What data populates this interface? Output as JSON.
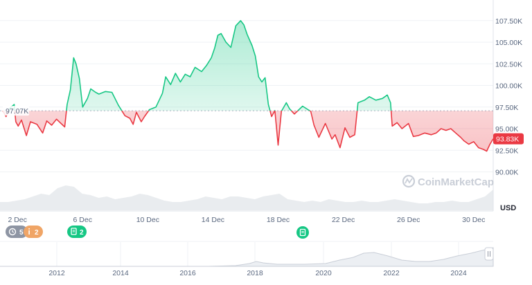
{
  "chart_data": {
    "type": "area",
    "unit_label": "USD",
    "watermark": "CoinMarketCap",
    "ylim": [
      88500,
      109000
    ],
    "y_ticks": [
      {
        "v": 107500,
        "label": "107.50K"
      },
      {
        "v": 105000,
        "label": "105.00K"
      },
      {
        "v": 102500,
        "label": "102.50K"
      },
      {
        "v": 100000,
        "label": "100.00K"
      },
      {
        "v": 97500,
        "label": "97.50K"
      },
      {
        "v": 95000,
        "label": "95.00K"
      },
      {
        "v": 92500,
        "label": "92.50K"
      },
      {
        "v": 90000,
        "label": "90.00K"
      }
    ],
    "x_ticks": [
      {
        "day": 2,
        "label": "2 Dec"
      },
      {
        "day": 6,
        "label": "6 Dec"
      },
      {
        "day": 10,
        "label": "10 Dec"
      },
      {
        "day": 14,
        "label": "14 Dec"
      },
      {
        "day": 18,
        "label": "18 Dec"
      },
      {
        "day": 22,
        "label": "22 Dec"
      },
      {
        "day": 26,
        "label": "26 Dec"
      },
      {
        "day": 30,
        "label": "30 Dec"
      }
    ],
    "x_range_days": [
      1.1,
      31.2
    ],
    "baseline": {
      "value": 97070,
      "label": "97.07K"
    },
    "current": {
      "value": 93830,
      "label": "93.83K"
    },
    "colors": {
      "up": "#16c784",
      "down": "#ea3943",
      "grid": "#eff2f5",
      "volume": "#e2e5ea"
    },
    "x_dates": [
      "Dec 1",
      "Dec 1.5",
      "Dec 2",
      "Dec 2.5",
      "Dec 3",
      "Dec 3.5",
      "Dec 4",
      "Dec 4.5",
      "Dec 5",
      "Dec 5.5",
      "Dec 6",
      "Dec 6.5",
      "Dec 7",
      "Dec 7.5",
      "Dec 8",
      "Dec 8.5",
      "Dec 9",
      "Dec 9.5",
      "Dec 10",
      "Dec 10.5",
      "Dec 11",
      "Dec 11.5",
      "Dec 12",
      "Dec 12.5",
      "Dec 13",
      "Dec 13.5",
      "Dec 14",
      "Dec 14.5",
      "Dec 15",
      "Dec 15.5",
      "Dec 16",
      "Dec 16.5",
      "Dec 17",
      "Dec 17.5",
      "Dec 18",
      "Dec 18.5",
      "Dec 19",
      "Dec 19.5",
      "Dec 20",
      "Dec 20.5",
      "Dec 21",
      "Dec 21.5",
      "Dec 22",
      "Dec 22.5",
      "Dec 23",
      "Dec 23.5",
      "Dec 24",
      "Dec 24.5",
      "Dec 25",
      "Dec 25.5",
      "Dec 26",
      "Dec 26.5",
      "Dec 27",
      "Dec 27.5",
      "Dec 28",
      "Dec 28.5",
      "Dec 29",
      "Dec 29.5",
      "Dec 30",
      "Dec 30.5",
      "Dec 31"
    ],
    "prices": [
      97070,
      96400,
      97800,
      95500,
      94800,
      95300,
      96100,
      95200,
      97800,
      103000,
      100500,
      97000,
      99600,
      99000,
      99200,
      97700,
      96200,
      95400,
      96900,
      96400,
      97500,
      99000,
      101200,
      101000,
      100100,
      101400,
      101200,
      102300,
      104300,
      105000,
      107000,
      107600,
      107300,
      103400,
      100300,
      97000,
      96900,
      97600,
      97100,
      97000,
      95700,
      95200,
      94300,
      93900,
      94500,
      98300,
      98600,
      98700,
      95400,
      95200,
      95500,
      94700,
      93700,
      93700,
      94400,
      94700,
      93500,
      93200,
      92400,
      92000,
      93830
    ],
    "price_line": [
      [
        1.1,
        97070
      ],
      [
        1.3,
        96400
      ],
      [
        1.55,
        97400
      ],
      [
        1.8,
        97800
      ],
      [
        1.9,
        95800
      ],
      [
        2.05,
        95300
      ],
      [
        2.25,
        96000
      ],
      [
        2.55,
        94200
      ],
      [
        2.8,
        95800
      ],
      [
        3.2,
        95500
      ],
      [
        3.55,
        94500
      ],
      [
        3.8,
        95900
      ],
      [
        4.1,
        95400
      ],
      [
        4.4,
        96100
      ],
      [
        4.9,
        95200
      ],
      [
        5.05,
        97800
      ],
      [
        5.25,
        99500
      ],
      [
        5.45,
        103200
      ],
      [
        5.6,
        102500
      ],
      [
        5.8,
        100800
      ],
      [
        6.0,
        97500
      ],
      [
        6.3,
        98500
      ],
      [
        6.5,
        99600
      ],
      [
        6.8,
        99200
      ],
      [
        7.0,
        99000
      ],
      [
        7.4,
        99300
      ],
      [
        7.8,
        99200
      ],
      [
        8.2,
        97700
      ],
      [
        8.6,
        96500
      ],
      [
        8.9,
        96200
      ],
      [
        9.1,
        95500
      ],
      [
        9.3,
        96900
      ],
      [
        9.6,
        95800
      ],
      [
        9.8,
        96400
      ],
      [
        10.1,
        97200
      ],
      [
        10.5,
        97500
      ],
      [
        10.9,
        99100
      ],
      [
        11.1,
        101000
      ],
      [
        11.4,
        100100
      ],
      [
        11.7,
        101400
      ],
      [
        12.0,
        100400
      ],
      [
        12.3,
        101300
      ],
      [
        12.6,
        101000
      ],
      [
        12.9,
        102100
      ],
      [
        13.3,
        101600
      ],
      [
        13.6,
        102300
      ],
      [
        13.9,
        103200
      ],
      [
        14.1,
        104300
      ],
      [
        14.3,
        105800
      ],
      [
        14.5,
        106000
      ],
      [
        14.8,
        105000
      ],
      [
        15.1,
        104400
      ],
      [
        15.4,
        106900
      ],
      [
        15.7,
        107500
      ],
      [
        15.9,
        107000
      ],
      [
        16.1,
        105900
      ],
      [
        16.4,
        104600
      ],
      [
        16.6,
        103400
      ],
      [
        16.8,
        101000
      ],
      [
        17.0,
        100400
      ],
      [
        17.2,
        100900
      ],
      [
        17.4,
        97800
      ],
      [
        17.6,
        96400
      ],
      [
        17.8,
        97100
      ],
      [
        18.0,
        93100
      ],
      [
        18.2,
        97000
      ],
      [
        18.5,
        98000
      ],
      [
        18.7,
        97300
      ],
      [
        19.0,
        96700
      ],
      [
        19.5,
        97600
      ],
      [
        20.0,
        97000
      ],
      [
        20.2,
        95400
      ],
      [
        20.5,
        94000
      ],
      [
        20.9,
        95600
      ],
      [
        21.3,
        93800
      ],
      [
        21.5,
        94300
      ],
      [
        21.8,
        92800
      ],
      [
        22.1,
        95100
      ],
      [
        22.4,
        94000
      ],
      [
        22.7,
        94300
      ],
      [
        22.9,
        98000
      ],
      [
        23.3,
        98300
      ],
      [
        23.6,
        98700
      ],
      [
        24.0,
        98300
      ],
      [
        24.4,
        98500
      ],
      [
        24.7,
        98900
      ],
      [
        24.9,
        98000
      ],
      [
        25.0,
        95300
      ],
      [
        25.3,
        95700
      ],
      [
        25.6,
        95000
      ],
      [
        26.0,
        95600
      ],
      [
        26.3,
        94100
      ],
      [
        26.6,
        94200
      ],
      [
        27.0,
        94500
      ],
      [
        27.4,
        94300
      ],
      [
        27.7,
        94500
      ],
      [
        28.0,
        95000
      ],
      [
        28.3,
        94800
      ],
      [
        28.6,
        95000
      ],
      [
        28.9,
        94500
      ],
      [
        29.2,
        94000
      ],
      [
        29.4,
        93600
      ],
      [
        29.7,
        93200
      ],
      [
        30.0,
        93500
      ],
      [
        30.3,
        92800
      ],
      [
        30.6,
        92600
      ],
      [
        30.8,
        92400
      ],
      [
        31.0,
        93200
      ],
      [
        31.2,
        93830
      ]
    ],
    "volume_profile": [
      0.3,
      0.3,
      0.35,
      0.4,
      0.5,
      0.6,
      0.55,
      0.8,
      0.9,
      0.85,
      0.6,
      0.55,
      0.45,
      0.5,
      0.4,
      0.45,
      0.5,
      0.6,
      0.55,
      0.45,
      0.35,
      0.3,
      0.3,
      0.35,
      0.4,
      0.5,
      0.45,
      0.4,
      0.5,
      0.5,
      0.45,
      0.4,
      0.5,
      0.55,
      0.6,
      0.4,
      0.35,
      0.3,
      0.35,
      0.3,
      0.4,
      0.35,
      0.3,
      0.3,
      0.35,
      0.3,
      0.3,
      0.35,
      0.4,
      0.35,
      0.3,
      0.25,
      0.25,
      0.3,
      0.3,
      0.35,
      0.3,
      0.3,
      0.4,
      0.5,
      0.75
    ]
  },
  "markers": [
    {
      "icon": "clock-icon",
      "label": "5",
      "color": "#8e95a3"
    },
    {
      "icon": "info-icon",
      "label": "2",
      "color": "#f0a566"
    },
    {
      "icon": "document-icon",
      "label": "2",
      "color": "#16c784"
    },
    {
      "icon": "document-icon",
      "label": "",
      "color": "#16c784"
    }
  ],
  "navigator": {
    "years": [
      "2012",
      "2014",
      "2016",
      "2018",
      "2020",
      "2022",
      "2024"
    ],
    "handle_icon": "drag-handle-icon"
  }
}
